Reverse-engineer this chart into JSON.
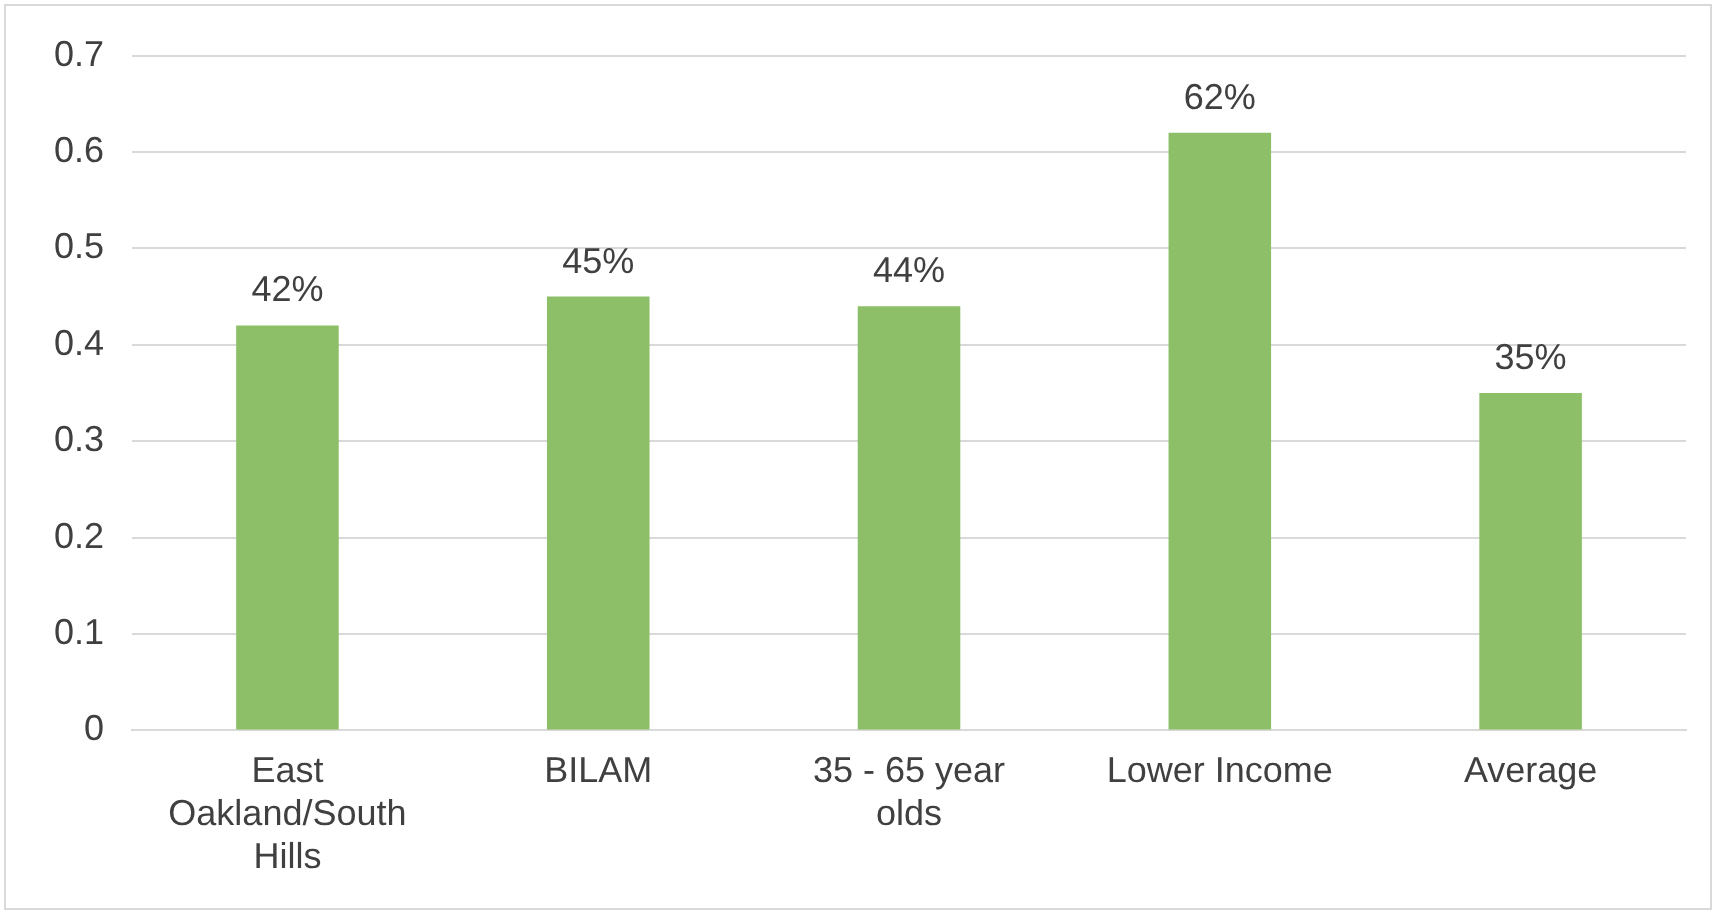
{
  "chart_data": {
    "type": "bar",
    "categories": [
      "East Oakland/South Hills",
      "BILAM",
      "35 - 65 year olds",
      "Lower Income",
      "Average"
    ],
    "values": [
      0.42,
      0.45,
      0.44,
      0.62,
      0.35
    ],
    "color": "#8cbf68",
    "value_labels": [
      "42%",
      "45%",
      "44%",
      "62%",
      "35%"
    ],
    "ylim": [
      0,
      0.7
    ],
    "yticks": [
      0,
      0.1,
      0.2,
      0.3,
      0.4,
      0.5,
      0.6,
      0.7
    ],
    "grid": "y",
    "legend": false
  }
}
